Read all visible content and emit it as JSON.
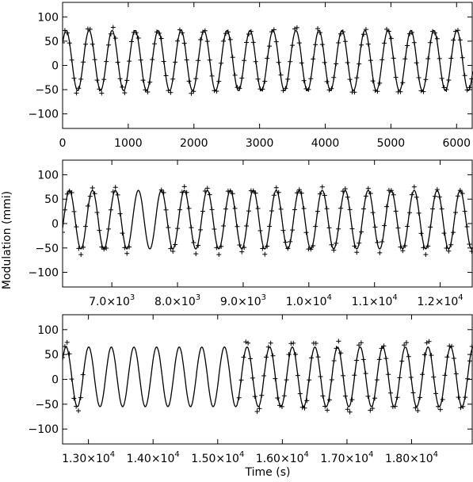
{
  "figure": {
    "ylabel": "Modulation (mmi)",
    "xlabel": "Time (s)"
  },
  "chart_data": [
    {
      "type": "line",
      "xlim": [
        0,
        6250
      ],
      "ylim": [
        -130,
        130
      ],
      "xticks": [
        0,
        1000,
        2000,
        3000,
        4000,
        5000,
        6000
      ],
      "xtick_labels": [
        "0",
        "1000",
        "2000",
        "3000",
        "4000",
        "5000",
        "6000"
      ],
      "yticks": [
        -100,
        -50,
        0,
        50,
        100
      ],
      "ytick_labels": [
        "−100",
        "−50",
        "0",
        "50",
        "100"
      ],
      "series": [
        {
          "style": "solid-line",
          "period_s": 350,
          "mean": 10,
          "amplitude": 62,
          "x_range": [
            0,
            6250
          ]
        },
        {
          "style": "plus-markers",
          "period_s": 350,
          "mean": 10,
          "amplitude": 65,
          "x_range": [
            0,
            6250
          ],
          "sample_step_s": 35
        }
      ]
    },
    {
      "type": "line",
      "xlim": [
        6250,
        12500
      ],
      "ylim": [
        -130,
        130
      ],
      "xticks": [
        7000,
        8000,
        9000,
        10000,
        11000,
        12000
      ],
      "xtick_labels": [
        [
          "7.0×10",
          "3"
        ],
        [
          "8.0×10",
          "3"
        ],
        [
          "9.0×10",
          "3"
        ],
        [
          "1.0×10",
          "4"
        ],
        [
          "1.1×10",
          "4"
        ],
        [
          "1.2×10",
          "4"
        ]
      ],
      "yticks": [
        -100,
        -50,
        0,
        50,
        100
      ],
      "ytick_labels": [
        "−100",
        "−50",
        "0",
        "50",
        "100"
      ],
      "series": [
        {
          "style": "solid-line",
          "period_s": 350,
          "mean": 8,
          "amplitude": 60,
          "x_range": [
            6250,
            12500
          ]
        },
        {
          "style": "plus-markers",
          "period_s": 350,
          "mean": 8,
          "amplitude": 65,
          "x_range": [
            6250,
            12500
          ],
          "sample_step_s": 35,
          "gaps": [
            [
              7300,
              7750
            ]
          ]
        }
      ]
    },
    {
      "type": "line",
      "xlim": [
        12600,
        18950
      ],
      "ylim": [
        -130,
        130
      ],
      "xticks": [
        13000,
        14000,
        15000,
        16000,
        17000,
        18000
      ],
      "xtick_labels": [
        [
          "1.30×10",
          "4"
        ],
        [
          "1.40×10",
          "4"
        ],
        [
          "1.50×10",
          "4"
        ],
        [
          "1.60×10",
          "4"
        ],
        [
          "1.70×10",
          "4"
        ],
        [
          "1.80×10",
          "4"
        ]
      ],
      "yticks": [
        -100,
        -50,
        0,
        50,
        100
      ],
      "ytick_labels": [
        "−100",
        "−50",
        "0",
        "50",
        "100"
      ],
      "series": [
        {
          "style": "solid-line",
          "period_s": 350,
          "mean": 5,
          "amplitude": 60,
          "x_range": [
            12600,
            18950
          ]
        },
        {
          "style": "plus-markers",
          "period_s": 350,
          "mean": 5,
          "amplitude": 68,
          "x_range": [
            12600,
            18950
          ],
          "sample_step_s": 35,
          "gaps": [
            [
              12950,
              15300
            ]
          ]
        }
      ]
    }
  ]
}
